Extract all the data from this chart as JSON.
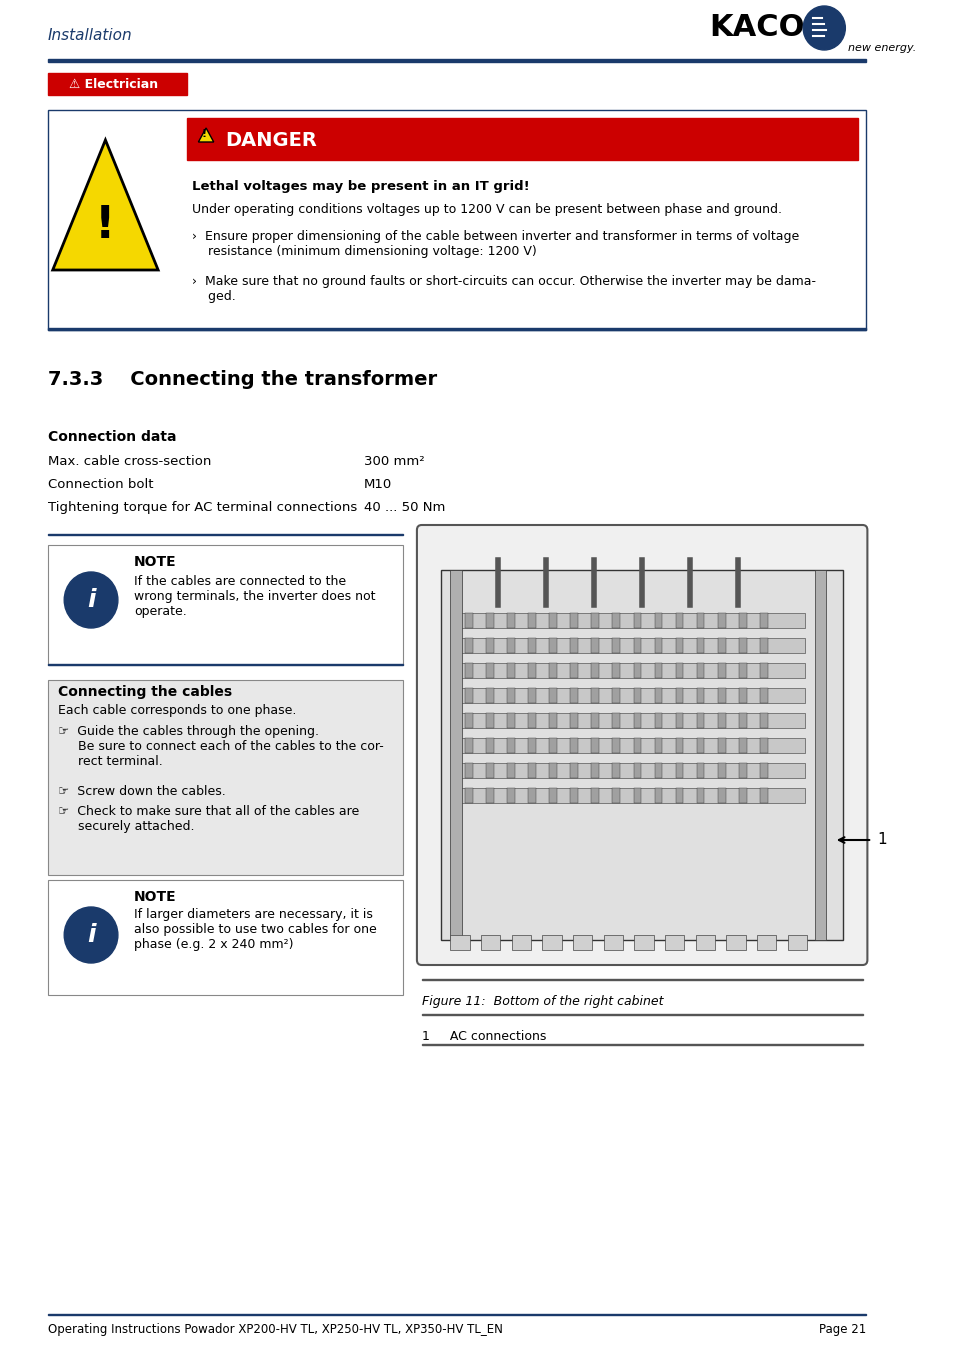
{
  "page_bg": "#ffffff",
  "header_text": "Installation",
  "header_color": "#1a3a6b",
  "kaco_text": "KACO",
  "new_energy_text": "new energy.",
  "header_line_color": "#1a3a6b",
  "electrician_bg": "#cc0000",
  "electrician_text": "⚠ Electrician",
  "danger_bg": "#cc0000",
  "danger_text": "DANGER",
  "danger_subtitle": "Lethal voltages may be present in an IT grid!",
  "danger_body1": "Under operating conditions voltages up to 1200 V can be present between phase and ground.",
  "danger_bullet1": "›  Ensure proper dimensioning of the cable between inverter and transformer in terms of voltage\n     resistance (minimum dimensioning voltage: 1200 V)",
  "danger_bullet2": "›  Make sure that no ground faults or short-circuits can occur. Otherwise the inverter may be dama-\n     ged.",
  "section_title": "7.3.3    Connecting the transformer",
  "conn_data_title": "Connection data",
  "conn_row1_label": "Max. cable cross-section",
  "conn_row1_value": "300 mm²",
  "conn_row2_label": "Connection bolt",
  "conn_row2_value": "M10",
  "conn_row3_label": "Tightening torque for AC terminal connections",
  "conn_row3_value": "40 ... 50 Nm",
  "note1_title": "NOTE",
  "note1_body": "If the cables are connected to the\nwrong terminals, the inverter does not\noperate.",
  "conn_cables_title": "Connecting the cables",
  "conn_cables_body": "Each cable corresponds to one phase.",
  "conn_bullet1": "☞  Guide the cables through the opening.\n     Be sure to connect each of the cables to the cor-\n     rect terminal.",
  "conn_bullet2": "☞  Screw down the cables.",
  "conn_bullet3": "☞  Check to make sure that all of the cables are\n     securely attached.",
  "note2_title": "NOTE",
  "note2_body": "If larger diameters are necessary, it is\nalso possible to use two cables for one\nphase (e.g. 2 x 240 mm²)",
  "figure_caption": "Figure 11:  Bottom of the right cabinet",
  "figure_label": "1",
  "figure_ref": "1     AC connections",
  "footer_text": "Operating Instructions Powador XP200-HV TL, XP250-HV TL, XP350-HV TL_EN",
  "footer_page": "Page 21",
  "blue_dark": "#1a3a6b",
  "red": "#cc0000",
  "black": "#000000",
  "gray_light": "#e8e8e8",
  "gray_box": "#d0d0d0"
}
